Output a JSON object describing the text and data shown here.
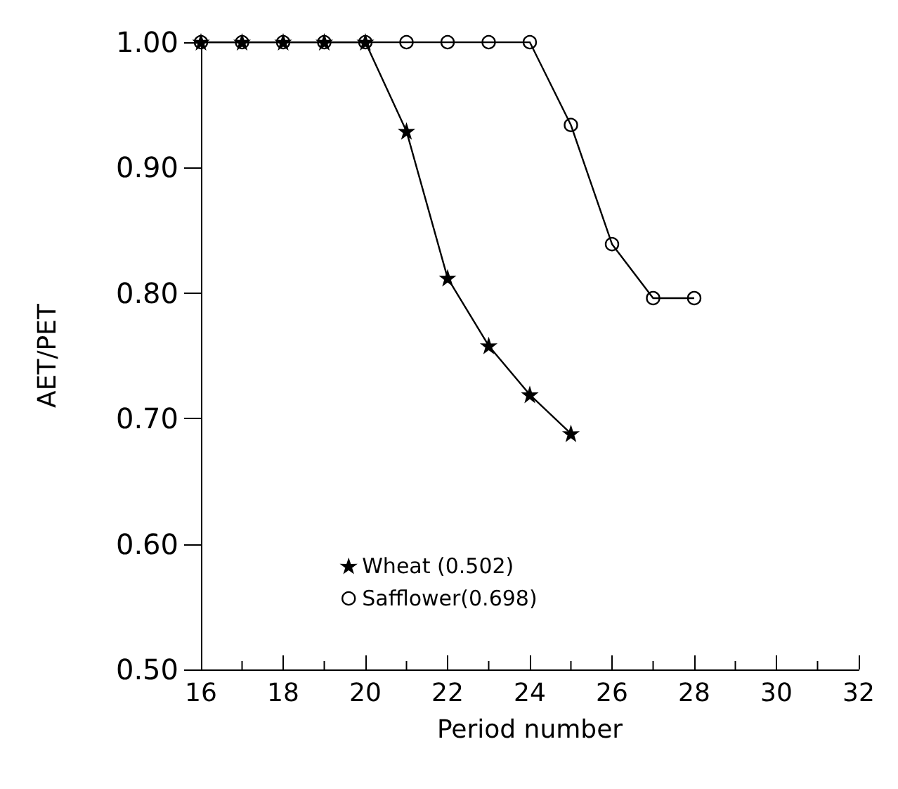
{
  "chart_data": {
    "type": "line",
    "xlabel": "Period number",
    "ylabel": "AET/PET",
    "x": [
      16,
      17,
      18,
      19,
      20,
      21,
      22,
      23,
      24,
      25,
      26,
      27,
      28
    ],
    "series": [
      {
        "name": "Wheat (0.502)",
        "color": "#000000",
        "marker": "star",
        "values": [
          1.0,
          1.0,
          1.0,
          1.0,
          1.0,
          0.929,
          0.812,
          0.758,
          0.719,
          0.688,
          null,
          null,
          null
        ]
      },
      {
        "name": "Safflower(0.698)",
        "color": "#000000",
        "marker": "circle",
        "values": [
          1.0,
          1.0,
          1.0,
          1.0,
          1.0,
          1.0,
          1.0,
          1.0,
          1.0,
          0.934,
          0.839,
          0.796,
          0.796
        ]
      }
    ],
    "xlim": [
      16,
      32
    ],
    "xticks": [
      16,
      18,
      20,
      22,
      24,
      26,
      28,
      30,
      32
    ],
    "ylim": [
      0.5,
      1.0
    ],
    "yticks": [
      {
        "value": 0.5,
        "label": "0.50"
      },
      {
        "value": 0.6,
        "label": "0.60"
      },
      {
        "value": 0.7,
        "label": "0.70"
      },
      {
        "value": 0.8,
        "label": "0.80"
      },
      {
        "value": 0.9,
        "label": "0.90"
      },
      {
        "value": 1.0,
        "label": "1.00"
      }
    ],
    "grid": false,
    "legend": "bottom left",
    "line_style": "solid"
  }
}
